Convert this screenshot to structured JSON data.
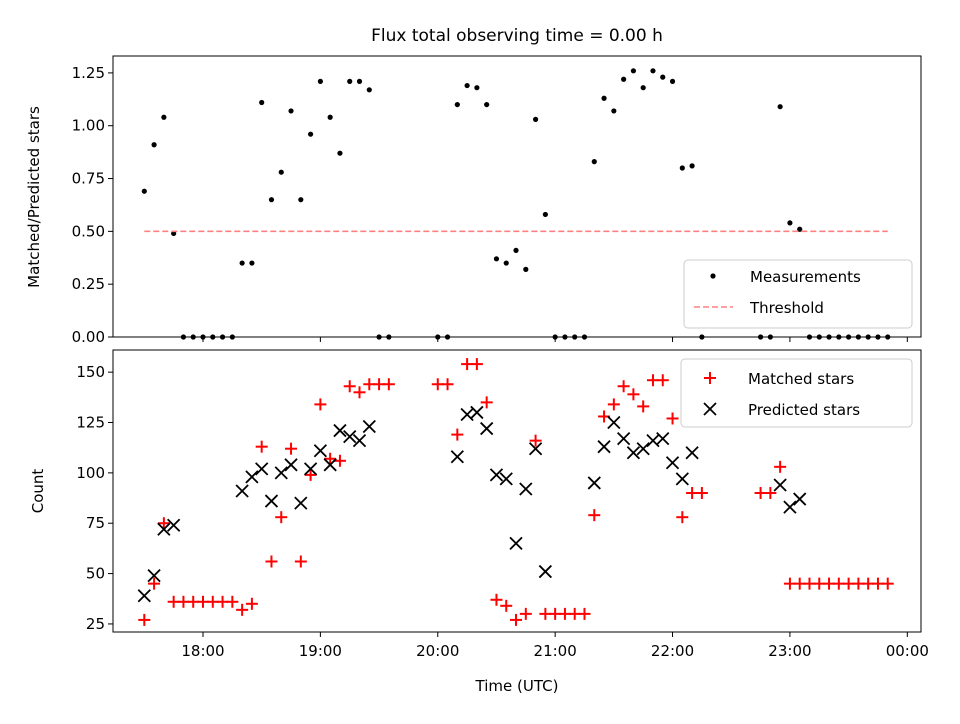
{
  "chart_data": [
    {
      "type": "scatter",
      "title": "Flux total observing time = 0.00 h",
      "xlabel": "",
      "ylabel": "Matched/Predicted stars",
      "ylim": [
        0,
        1.33
      ],
      "yticks": [
        0.0,
        0.25,
        0.5,
        0.75,
        1.0,
        1.25
      ],
      "ytick_labels": [
        "0.00",
        "0.25",
        "0.50",
        "0.75",
        "1.00",
        "1.25"
      ],
      "xlim": [
        "17:14",
        "00:07"
      ],
      "xticks": [
        "18:00",
        "19:00",
        "20:00",
        "21:00",
        "22:00",
        "23:00",
        "00:00"
      ],
      "legend_position": "lower-right",
      "series": [
        {
          "name": "Measurements",
          "marker": "dot",
          "color": "#000000",
          "points": [
            [
              "17:30",
              0.69
            ],
            [
              "17:35",
              0.91
            ],
            [
              "17:40",
              1.04
            ],
            [
              "17:45",
              0.49
            ],
            [
              "17:50",
              0.0
            ],
            [
              "17:55",
              0.0
            ],
            [
              "18:00",
              0.0
            ],
            [
              "18:05",
              0.0
            ],
            [
              "18:10",
              0.0
            ],
            [
              "18:15",
              0.0
            ],
            [
              "18:20",
              0.35
            ],
            [
              "18:25",
              0.35
            ],
            [
              "18:30",
              1.11
            ],
            [
              "18:35",
              0.65
            ],
            [
              "18:40",
              0.78
            ],
            [
              "18:45",
              1.07
            ],
            [
              "18:50",
              0.65
            ],
            [
              "18:55",
              0.96
            ],
            [
              "19:00",
              1.21
            ],
            [
              "19:05",
              1.04
            ],
            [
              "19:10",
              0.87
            ],
            [
              "19:15",
              1.21
            ],
            [
              "19:20",
              1.21
            ],
            [
              "19:25",
              1.17
            ],
            [
              "19:30",
              0.0
            ],
            [
              "19:35",
              0.0
            ],
            [
              "20:00",
              0.0
            ],
            [
              "20:05",
              0.0
            ],
            [
              "20:10",
              1.1
            ],
            [
              "20:15",
              1.19
            ],
            [
              "20:20",
              1.18
            ],
            [
              "20:25",
              1.1
            ],
            [
              "20:30",
              0.37
            ],
            [
              "20:35",
              0.35
            ],
            [
              "20:40",
              0.41
            ],
            [
              "20:45",
              0.32
            ],
            [
              "20:50",
              1.03
            ],
            [
              "20:55",
              0.58
            ],
            [
              "21:00",
              0.0
            ],
            [
              "21:05",
              0.0
            ],
            [
              "21:10",
              0.0
            ],
            [
              "21:15",
              0.0
            ],
            [
              "21:20",
              0.83
            ],
            [
              "21:25",
              1.13
            ],
            [
              "21:30",
              1.07
            ],
            [
              "21:35",
              1.22
            ],
            [
              "21:40",
              1.26
            ],
            [
              "21:45",
              1.18
            ],
            [
              "21:50",
              1.26
            ],
            [
              "21:55",
              1.23
            ],
            [
              "22:00",
              1.21
            ],
            [
              "22:05",
              0.8
            ],
            [
              "22:10",
              0.81
            ],
            [
              "22:15",
              0.0
            ],
            [
              "22:45",
              0.0
            ],
            [
              "22:50",
              0.0
            ],
            [
              "22:55",
              1.09
            ],
            [
              "23:00",
              0.54
            ],
            [
              "23:05",
              0.51
            ],
            [
              "23:10",
              0.0
            ],
            [
              "23:15",
              0.0
            ],
            [
              "23:20",
              0.0
            ],
            [
              "23:25",
              0.0
            ],
            [
              "23:30",
              0.0
            ],
            [
              "23:35",
              0.0
            ],
            [
              "23:40",
              0.0
            ],
            [
              "23:45",
              0.0
            ],
            [
              "23:50",
              0.0
            ]
          ]
        },
        {
          "name": "Threshold",
          "marker": "dashed-line",
          "color": "#ff8080",
          "points": [
            [
              "17:30",
              0.5
            ],
            [
              "23:50",
              0.5
            ]
          ]
        }
      ]
    },
    {
      "type": "scatter",
      "title": "",
      "xlabel": "Time (UTC)",
      "ylabel": "Count",
      "ylim": [
        21,
        161
      ],
      "yticks": [
        25,
        50,
        75,
        100,
        125,
        150
      ],
      "ytick_labels": [
        "25",
        "50",
        "75",
        "100",
        "125",
        "150"
      ],
      "xlim": [
        "17:14",
        "00:07"
      ],
      "xticks": [
        "18:00",
        "19:00",
        "20:00",
        "21:00",
        "22:00",
        "23:00",
        "00:00"
      ],
      "xtick_labels": [
        "18:00",
        "19:00",
        "20:00",
        "21:00",
        "22:00",
        "23:00",
        "00:00"
      ],
      "legend_position": "upper-right",
      "series": [
        {
          "name": "Matched stars",
          "marker": "plus",
          "color": "#ff0000",
          "points": [
            [
              "17:30",
              27
            ],
            [
              "17:35",
              45
            ],
            [
              "17:40",
              75
            ],
            [
              "17:45",
              36
            ],
            [
              "17:50",
              36
            ],
            [
              "17:55",
              36
            ],
            [
              "18:00",
              36
            ],
            [
              "18:05",
              36
            ],
            [
              "18:10",
              36
            ],
            [
              "18:15",
              36
            ],
            [
              "18:20",
              32
            ],
            [
              "18:25",
              35
            ],
            [
              "18:30",
              113
            ],
            [
              "18:35",
              56
            ],
            [
              "18:40",
              78
            ],
            [
              "18:45",
              112
            ],
            [
              "18:50",
              56
            ],
            [
              "18:55",
              99
            ],
            [
              "19:00",
              134
            ],
            [
              "19:05",
              107
            ],
            [
              "19:10",
              106
            ],
            [
              "19:15",
              143
            ],
            [
              "19:20",
              140
            ],
            [
              "19:25",
              144
            ],
            [
              "19:30",
              144
            ],
            [
              "19:35",
              144
            ],
            [
              "20:00",
              144
            ],
            [
              "20:05",
              144
            ],
            [
              "20:10",
              119
            ],
            [
              "20:15",
              154
            ],
            [
              "20:20",
              154
            ],
            [
              "20:25",
              135
            ],
            [
              "20:30",
              37
            ],
            [
              "20:35",
              34
            ],
            [
              "20:40",
              27
            ],
            [
              "20:45",
              30
            ],
            [
              "20:50",
              116
            ],
            [
              "20:55",
              30
            ],
            [
              "21:00",
              30
            ],
            [
              "21:05",
              30
            ],
            [
              "21:10",
              30
            ],
            [
              "21:15",
              30
            ],
            [
              "21:20",
              79
            ],
            [
              "21:25",
              128
            ],
            [
              "21:30",
              134
            ],
            [
              "21:35",
              143
            ],
            [
              "21:40",
              139
            ],
            [
              "21:45",
              133
            ],
            [
              "21:50",
              146
            ],
            [
              "21:55",
              146
            ],
            [
              "22:00",
              127
            ],
            [
              "22:05",
              78
            ],
            [
              "22:10",
              90
            ],
            [
              "22:15",
              90
            ],
            [
              "22:45",
              90
            ],
            [
              "22:50",
              90
            ],
            [
              "22:55",
              103
            ],
            [
              "23:00",
              45
            ],
            [
              "23:05",
              45
            ],
            [
              "23:10",
              45
            ],
            [
              "23:15",
              45
            ],
            [
              "23:20",
              45
            ],
            [
              "23:25",
              45
            ],
            [
              "23:30",
              45
            ],
            [
              "23:35",
              45
            ],
            [
              "23:40",
              45
            ],
            [
              "23:45",
              45
            ],
            [
              "23:50",
              45
            ]
          ]
        },
        {
          "name": "Predicted stars",
          "marker": "x",
          "color": "#000000",
          "points": [
            [
              "17:30",
              39
            ],
            [
              "17:35",
              49
            ],
            [
              "17:40",
              72
            ],
            [
              "17:45",
              74
            ],
            [
              "18:20",
              91
            ],
            [
              "18:25",
              98
            ],
            [
              "18:30",
              102
            ],
            [
              "18:35",
              86
            ],
            [
              "18:40",
              100
            ],
            [
              "18:45",
              104
            ],
            [
              "18:50",
              85
            ],
            [
              "18:55",
              102
            ],
            [
              "19:00",
              111
            ],
            [
              "19:05",
              104
            ],
            [
              "19:10",
              121
            ],
            [
              "19:15",
              118
            ],
            [
              "19:20",
              116
            ],
            [
              "19:25",
              123
            ],
            [
              "20:10",
              108
            ],
            [
              "20:15",
              129
            ],
            [
              "20:20",
              130
            ],
            [
              "20:25",
              122
            ],
            [
              "20:30",
              99
            ],
            [
              "20:35",
              97
            ],
            [
              "20:40",
              65
            ],
            [
              "20:45",
              92
            ],
            [
              "20:50",
              112
            ],
            [
              "20:55",
              51
            ],
            [
              "21:20",
              95
            ],
            [
              "21:25",
              113
            ],
            [
              "21:30",
              125
            ],
            [
              "21:35",
              117
            ],
            [
              "21:40",
              110
            ],
            [
              "21:45",
              112
            ],
            [
              "21:50",
              116
            ],
            [
              "21:55",
              117
            ],
            [
              "22:00",
              105
            ],
            [
              "22:05",
              97
            ],
            [
              "22:10",
              110
            ],
            [
              "22:55",
              94
            ],
            [
              "23:00",
              83
            ],
            [
              "23:05",
              87
            ]
          ]
        }
      ]
    }
  ]
}
